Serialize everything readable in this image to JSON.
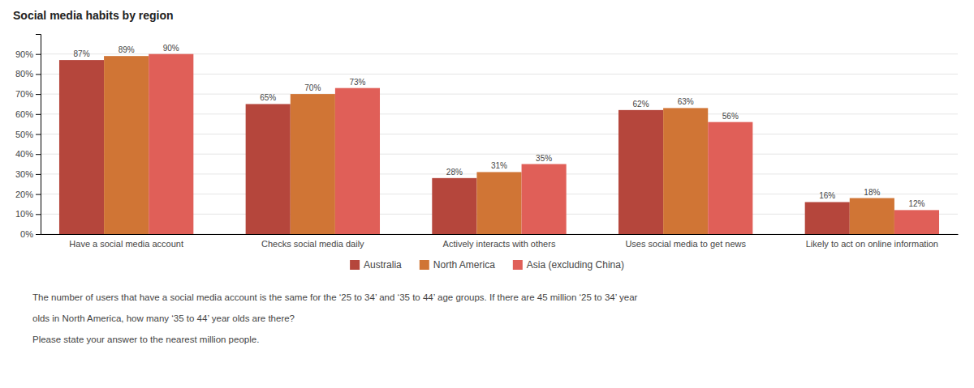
{
  "chart_data": {
    "type": "bar",
    "title": "Social media habits by region",
    "categories": [
      "Have a social media account",
      "Checks social media daily",
      "Actively interacts with others",
      "Uses social media to get news",
      "Likely to act on online information"
    ],
    "series": [
      {
        "name": "Australia",
        "color": "#b5463c",
        "values": [
          87,
          65,
          28,
          62,
          16
        ],
        "value_labels": [
          "87%",
          "65%",
          "28%",
          "62%",
          "16%"
        ]
      },
      {
        "name": "North America",
        "color": "#d07535",
        "values": [
          89,
          70,
          31,
          63,
          18
        ],
        "value_labels": [
          "89%",
          "70%",
          "31%",
          "63%",
          "18%"
        ]
      },
      {
        "name": "Asia (excluding China)",
        "color": "#e05f58",
        "values": [
          90,
          73,
          35,
          56,
          12
        ],
        "value_labels": [
          "90%",
          "73%",
          "35%",
          "56%",
          "12%"
        ]
      }
    ],
    "ylim": [
      0,
      100
    ],
    "yticks": [
      {
        "value": 0,
        "label": "0%"
      },
      {
        "value": 10,
        "label": "10%"
      },
      {
        "value": 20,
        "label": "20%"
      },
      {
        "value": 30,
        "label": "30%"
      },
      {
        "value": 40,
        "label": "40%"
      },
      {
        "value": 50,
        "label": "50%"
      },
      {
        "value": 60,
        "label": "60%"
      },
      {
        "value": 70,
        "label": "70%"
      },
      {
        "value": 80,
        "label": "80%"
      },
      {
        "value": 90,
        "label": "90%"
      }
    ],
    "grid": true,
    "data_labels": true,
    "legend": "bottom",
    "annotations": [
      "The number of users that have a social media account is the same for the ‘25 to 34’ and ‘35 to 44’ age groups. If there are 45 million ‘25 to 34’ year",
      "olds in North America, how many ‘35 to 44’ year olds are there?",
      "Please state your answer to the nearest million people."
    ]
  }
}
